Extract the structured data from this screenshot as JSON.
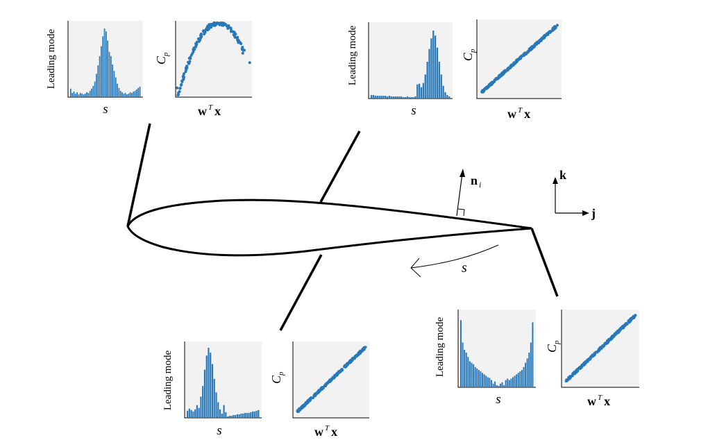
{
  "labels": {
    "leading_mode": "Leading mode",
    "s_axis": "s",
    "cp_main": "C",
    "cp_sub": "p",
    "w": "w",
    "t": "T",
    "x": "x",
    "normal_main": "n",
    "normal_sub": "i",
    "s_arc": "s",
    "k": "k",
    "j": "j"
  },
  "colors": {
    "points": "#2878b8",
    "panel": "#f2f2f2"
  },
  "chart_data": [
    {
      "type": "bar",
      "panel": "top-left-histogram",
      "values": [
        0.12,
        0.06,
        0.08,
        0.05,
        0.07,
        0.04,
        0.06,
        0.05,
        0.04,
        0.05,
        0.07,
        0.06,
        0.09,
        0.12,
        0.16,
        0.22,
        0.33,
        0.45,
        0.58,
        0.72,
        0.86,
        0.97,
        0.93,
        0.8,
        0.64,
        0.58,
        0.46,
        0.37,
        0.28,
        0.19,
        0.13,
        0.09,
        0.07,
        0.05,
        0.06,
        0.04,
        0.05,
        0.07,
        0.06,
        0.08,
        0.09,
        0.11,
        0.13,
        0.15
      ]
    },
    {
      "type": "scatter",
      "panel": "top-left-scatter",
      "shape": "arc"
    },
    {
      "type": "bar",
      "panel": "top-right-histogram",
      "values": [
        0.05,
        0.05,
        0.04,
        0.04,
        0.04,
        0.04,
        0.04,
        0.04,
        0.03,
        0.04,
        0.03,
        0.03,
        0.03,
        0.03,
        0.03,
        0.03,
        0.02,
        0.02,
        0.03,
        0.02,
        0.02,
        0.02,
        0.03,
        0.2,
        0.21,
        0.16,
        0.22,
        0.34,
        0.52,
        0.7,
        0.85,
        0.96,
        0.89,
        0.72,
        0.52,
        0.34,
        0.18,
        0.09,
        0.05,
        0.03
      ]
    },
    {
      "type": "scatter",
      "panel": "top-right-scatter",
      "shape": "line"
    },
    {
      "type": "bar",
      "panel": "bottom-left-histogram",
      "values": [
        0.1,
        0.13,
        0.11,
        0.09,
        0.12,
        0.18,
        0.14,
        0.3,
        0.45,
        0.68,
        0.88,
        0.99,
        0.92,
        0.76,
        0.55,
        0.36,
        0.22,
        0.12,
        0.06,
        0.18,
        0.08,
        0.02,
        0.03,
        0.03,
        0.04,
        0.04,
        0.05,
        0.05,
        0.06,
        0.06,
        0.07,
        0.07,
        0.07,
        0.08,
        0.09,
        0.09,
        0.1,
        0.11
      ]
    },
    {
      "type": "scatter",
      "panel": "bottom-left-scatter",
      "shape": "line"
    },
    {
      "type": "bar",
      "panel": "bottom-right-histogram",
      "values": [
        0.93,
        0.62,
        0.52,
        0.48,
        0.42,
        0.36,
        0.34,
        0.32,
        0.28,
        0.26,
        0.24,
        0.22,
        0.2,
        0.18,
        0.16,
        0.14,
        0.13,
        0.1,
        0.05,
        0.08,
        0.03,
        0.02,
        0.05,
        0.07,
        0.03,
        0.1,
        0.12,
        0.1,
        0.12,
        0.14,
        0.16,
        0.18,
        0.2,
        0.22,
        0.24,
        0.28,
        0.34,
        0.4,
        0.48,
        0.62,
        0.9
      ]
    },
    {
      "type": "scatter",
      "panel": "bottom-right-scatter",
      "shape": "line"
    }
  ]
}
